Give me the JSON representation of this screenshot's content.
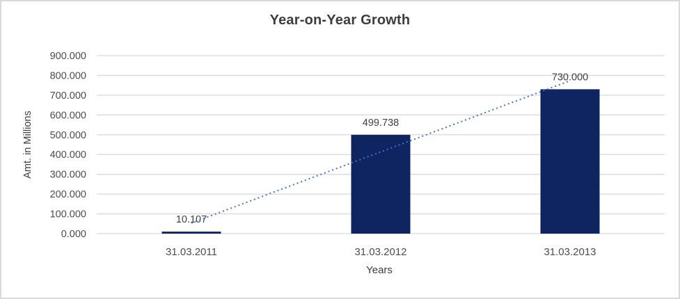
{
  "chart_data": {
    "type": "bar",
    "title": "Year-on-Year Growth",
    "xlabel": "Years",
    "ylabel": "Amt. in Millions",
    "categories": [
      "31.03.2011",
      "31.03.2012",
      "31.03.2013"
    ],
    "values": [
      10.107,
      499.738,
      730.0
    ],
    "data_labels": [
      "10.107",
      "499.738",
      "730.000"
    ],
    "ylim": [
      0,
      900
    ],
    "ytick_step": 100,
    "ytick_labels": [
      "0.000",
      "100.000",
      "200.000",
      "300.000",
      "400.000",
      "500.000",
      "600.000",
      "700.000",
      "800.000",
      "900.000"
    ],
    "grid": true,
    "legend": "none",
    "trendline": {
      "type": "linear",
      "style": "dotted"
    },
    "colors": {
      "bar": "#0e2562",
      "trendline": "#4472c4",
      "gridline": "#d9d9d9",
      "axis_text": "#4d4d4d",
      "label_text": "#404040",
      "title_text": "#3d3d3d",
      "background": "#ffffff",
      "border": "#d9d9d9"
    }
  }
}
